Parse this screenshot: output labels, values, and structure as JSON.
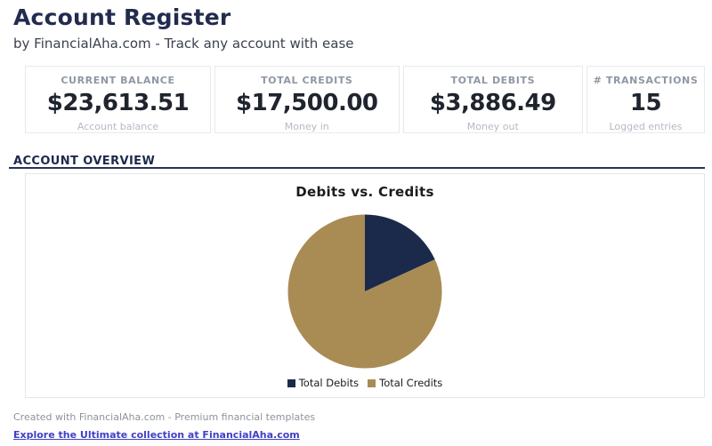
{
  "header": {
    "title": "Account Register",
    "subtitle": "by FinancialAha.com - Track any account with ease"
  },
  "stats": {
    "cards": [
      {
        "label": "CURRENT BALANCE",
        "value": "$23,613.51",
        "caption": "Account balance"
      },
      {
        "label": "TOTAL CREDITS",
        "value": "$17,500.00",
        "caption": "Money in"
      },
      {
        "label": "TOTAL DEBITS",
        "value": "$3,886.49",
        "caption": "Money out"
      },
      {
        "label": "# TRANSACTIONS",
        "value": "15",
        "caption": "Logged entries"
      }
    ]
  },
  "section": {
    "title": "ACCOUNT OVERVIEW"
  },
  "chart_data": {
    "type": "pie",
    "title": "Debits vs. Credits",
    "slices": [
      {
        "label": "Total Debits",
        "value": 3886.49,
        "color": "#1b2a4a"
      },
      {
        "label": "Total Credits",
        "value": 17500.0,
        "color": "#a98b54"
      }
    ],
    "start_angle_deg": 0,
    "direction": "clockwise",
    "legend_position": "bottom"
  },
  "footer": {
    "credit": "Created with FinancialAha.com - Premium financial templates",
    "link": "Explore the Ultimate collection at FinancialAha.com"
  },
  "colors": {
    "accent_navy": "#1b2a4a",
    "accent_tan": "#a98b54",
    "link": "#4040c8"
  }
}
